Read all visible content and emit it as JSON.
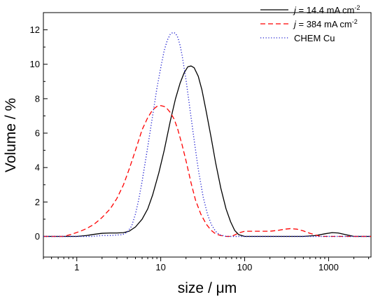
{
  "chart_data": {
    "type": "line",
    "xlabel": "size / μm",
    "ylabel": "Volume / %",
    "x_scale": "log",
    "xlim": [
      0.4,
      3200
    ],
    "ylim": [
      -1.2,
      13
    ],
    "x_ticks": [
      {
        "value": 1,
        "label": "1"
      },
      {
        "value": 10,
        "label": "10"
      },
      {
        "value": 100,
        "label": "100"
      },
      {
        "value": 1000,
        "label": "1000"
      }
    ],
    "y_ticks": [
      {
        "value": 0,
        "label": "0"
      },
      {
        "value": 2,
        "label": "2"
      },
      {
        "value": 4,
        "label": "4"
      },
      {
        "value": 6,
        "label": "6"
      },
      {
        "value": 8,
        "label": "8"
      },
      {
        "value": 10,
        "label": "10"
      },
      {
        "value": 12,
        "label": "12"
      }
    ],
    "grid": false,
    "legend_position": "top-right",
    "series": [
      {
        "label_parts": [
          {
            "text": "j",
            "italic": true
          },
          {
            "text": " = 14.4 mA cm"
          },
          {
            "text": "-2",
            "sup": true
          }
        ],
        "color": "#000000",
        "dash": "solid",
        "x": [
          0.4,
          1.0,
          1.3,
          1.6,
          2.0,
          2.5,
          3.0,
          3.6,
          4.2,
          5.0,
          6.0,
          7.0,
          8.0,
          9.5,
          11,
          13,
          15,
          17,
          19,
          21,
          23,
          25,
          28,
          31,
          35,
          40,
          45,
          52,
          60,
          68,
          76,
          85,
          100,
          200,
          500,
          700,
          900,
          1100,
          1300,
          1600,
          2000,
          3200
        ],
        "y": [
          0,
          0,
          0.05,
          0.12,
          0.18,
          0.2,
          0.2,
          0.22,
          0.3,
          0.55,
          1.0,
          1.6,
          2.4,
          3.7,
          5.0,
          6.7,
          8.0,
          8.9,
          9.5,
          9.85,
          9.9,
          9.8,
          9.3,
          8.5,
          7.2,
          5.7,
          4.3,
          2.8,
          1.6,
          0.85,
          0.35,
          0.1,
          0,
          0,
          0,
          0.05,
          0.15,
          0.22,
          0.2,
          0.1,
          0,
          0
        ]
      },
      {
        "label_parts": [
          {
            "text": "j",
            "italic": true
          },
          {
            "text": " = 384 mA cm"
          },
          {
            "text": "-2",
            "sup": true
          }
        ],
        "color": "#ff0000",
        "dash": "dashed",
        "x": [
          0.4,
          0.7,
          0.9,
          1.1,
          1.3,
          1.6,
          2.0,
          2.5,
          3.0,
          3.6,
          4.2,
          5.0,
          6.0,
          7.0,
          8.0,
          9.0,
          10,
          11,
          12,
          13,
          14.5,
          16,
          18,
          20,
          23,
          26,
          30,
          35,
          40,
          45,
          52,
          60,
          70,
          85,
          100,
          150,
          200,
          250,
          300,
          350,
          420,
          500,
          600,
          700,
          800,
          1000,
          3200
        ],
        "y": [
          0,
          0,
          0.15,
          0.3,
          0.45,
          0.7,
          1.1,
          1.6,
          2.2,
          3.0,
          3.9,
          5.0,
          6.2,
          6.9,
          7.35,
          7.55,
          7.6,
          7.55,
          7.4,
          7.2,
          6.8,
          6.2,
          5.3,
          4.4,
          3.1,
          2.1,
          1.3,
          0.7,
          0.35,
          0.15,
          0.05,
          0,
          0,
          0.2,
          0.3,
          0.3,
          0.3,
          0.35,
          0.42,
          0.45,
          0.42,
          0.32,
          0.18,
          0.08,
          0,
          0,
          0
        ]
      },
      {
        "label_parts": [
          {
            "text": "CHEM Cu"
          }
        ],
        "color": "#1f1fd0",
        "dash": "dotted",
        "x": [
          0.4,
          1.5,
          2.0,
          2.5,
          3.0,
          3.5,
          4.0,
          4.5,
          5.0,
          5.5,
          6.0,
          7.0,
          8.0,
          9.0,
          10,
          11,
          12,
          13,
          14,
          15,
          16,
          17,
          18,
          20,
          22,
          25,
          28,
          32,
          36,
          40,
          45,
          50,
          60,
          70,
          3200
        ],
        "y": [
          0,
          0,
          0.05,
          0.05,
          0.08,
          0.1,
          0.25,
          0.6,
          1.3,
          2.2,
          3.2,
          5.2,
          7.0,
          8.6,
          9.8,
          10.8,
          11.4,
          11.75,
          11.85,
          11.8,
          11.55,
          11.1,
          10.5,
          9.1,
          7.6,
          5.6,
          3.9,
          2.3,
          1.3,
          0.7,
          0.3,
          0.1,
          0,
          0,
          0
        ]
      }
    ]
  }
}
